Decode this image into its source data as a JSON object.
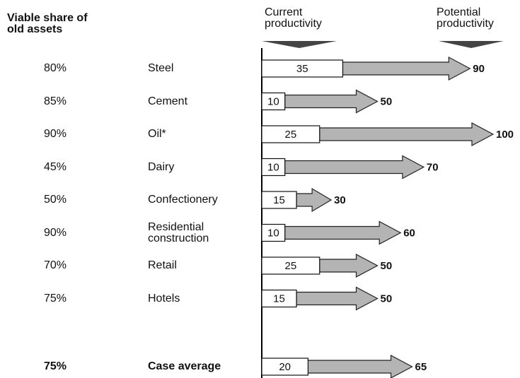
{
  "chart_data": {
    "type": "bar-arrow",
    "share_header": "Viable share of old assets",
    "categories": [
      "Steel",
      "Cement",
      "Oil*",
      "Dairy",
      "Confectionery",
      "Residential construction",
      "Retail",
      "Hotels",
      "Case average"
    ],
    "viable_share": {
      "values": [
        80,
        85,
        90,
        45,
        50,
        90,
        70,
        75,
        75
      ],
      "value_labels": [
        "80%",
        "85%",
        "90%",
        "45%",
        "50%",
        "90%",
        "70%",
        "75%",
        "75%"
      ]
    },
    "series": [
      {
        "name": "Current productivity",
        "color": "#ffffff",
        "values": [
          35,
          10,
          25,
          10,
          15,
          10,
          25,
          15,
          20
        ]
      },
      {
        "name": "Potential productivity",
        "color": "#b4b4b4",
        "values": [
          90,
          50,
          100,
          70,
          30,
          60,
          50,
          50,
          65
        ]
      }
    ],
    "xlim": [
      0,
      100
    ]
  }
}
